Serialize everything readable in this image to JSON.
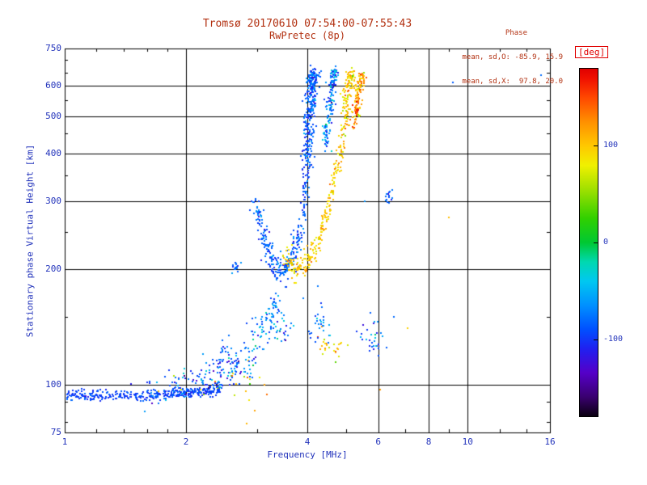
{
  "header": {
    "title": "Tromsø 20170610 07:54:00-07:55:43",
    "subtitle": "RwPretec (8p)",
    "phase_stats": {
      "label": "Phase",
      "o_line": "mean, sd,O: -85.9, 15.9",
      "x_line": "mean, sd,X:  97.8, 20.0"
    }
  },
  "colors": {
    "title_text": "#b23010",
    "axis_text": "#2233bb",
    "deg_label": "#e00000",
    "grid": "#000000",
    "background": "#ffffff"
  },
  "chart_data": {
    "type": "scatter",
    "title": "Tromsø 20170610 07:54:00-07:55:43",
    "subtitle": "RwPretec (8p)",
    "xlabel": "Frequency [MHz]",
    "ylabel": "Stationary phase Virtual Height [km]",
    "x_scale": "log",
    "y_scale": "log",
    "xlim": [
      1,
      16
    ],
    "ylim": [
      75,
      750
    ],
    "x_ticks": [
      1,
      2,
      4,
      6,
      8,
      10,
      16
    ],
    "y_ticks": [
      75,
      100,
      200,
      300,
      400,
      500,
      600,
      750
    ],
    "x_minor": [
      1.2,
      1.4,
      1.6,
      1.8,
      3,
      5,
      7,
      9,
      12,
      14
    ],
    "y_minor": [
      80,
      90,
      150,
      250,
      350,
      450,
      550,
      650,
      700
    ],
    "grid_x": [
      2,
      4,
      6,
      8,
      10
    ],
    "grid_y": [
      100,
      200,
      300,
      400,
      500,
      600
    ],
    "legend": "colorbar",
    "colorbar": {
      "label": "[deg]",
      "min": -180,
      "max": 180,
      "ticks": [
        100,
        0,
        -100
      ],
      "stops": [
        [
          -180,
          "#0a0010"
        ],
        [
          -160,
          "#3a0070"
        ],
        [
          -135,
          "#5500c8"
        ],
        [
          -110,
          "#2020f0"
        ],
        [
          -90,
          "#0050ff"
        ],
        [
          -65,
          "#0090ff"
        ],
        [
          -40,
          "#00c8f0"
        ],
        [
          -20,
          "#00d8b0"
        ],
        [
          0,
          "#00c832"
        ],
        [
          25,
          "#30d000"
        ],
        [
          55,
          "#a0e000"
        ],
        [
          80,
          "#f0f000"
        ],
        [
          100,
          "#ffc800"
        ],
        [
          125,
          "#ff9000"
        ],
        [
          150,
          "#ff4800"
        ],
        [
          170,
          "#f01000"
        ],
        [
          180,
          "#e00000"
        ]
      ]
    },
    "seed": 42,
    "traces": [
      {
        "name": "e-baseline",
        "path": [
          [
            1.0,
            93
          ],
          [
            1.2,
            94
          ],
          [
            1.45,
            93
          ],
          [
            1.7,
            94
          ],
          [
            1.95,
            95
          ],
          [
            2.2,
            96
          ],
          [
            2.45,
            97
          ]
        ],
        "n": 380,
        "jf": 0.008,
        "jh": 1.6,
        "phase_mean": -95,
        "phase_sd": 10
      },
      {
        "name": "e-baseline-rise",
        "path": [
          [
            1.5,
            96
          ],
          [
            1.8,
            99
          ],
          [
            2.1,
            102
          ],
          [
            2.35,
            105
          ],
          [
            2.6,
            108
          ],
          [
            2.85,
            110
          ]
        ],
        "n": 110,
        "jf": 0.03,
        "jh": 5,
        "phase_mean": -85,
        "phase_sd": 30
      },
      {
        "name": "e-sporadic-yellow",
        "path": [
          [
            1.7,
            96
          ],
          [
            2.1,
            100
          ],
          [
            2.5,
            104
          ],
          [
            2.9,
            100
          ],
          [
            3.3,
            95
          ]
        ],
        "n": 22,
        "jf": 0.05,
        "jh": 6,
        "phase_mean": 95,
        "phase_sd": 35
      },
      {
        "name": "cluster-2.5",
        "path": [
          [
            2.4,
            112
          ],
          [
            2.55,
            118
          ],
          [
            2.7,
            114
          ]
        ],
        "n": 45,
        "jf": 0.02,
        "jh": 7,
        "phase_mean": -78,
        "phase_sd": 25
      },
      {
        "name": "rising-scatter",
        "path": [
          [
            2.8,
            118
          ],
          [
            2.95,
            126
          ],
          [
            3.1,
            138
          ],
          [
            3.25,
            148
          ],
          [
            3.4,
            142
          ],
          [
            3.55,
            136
          ]
        ],
        "n": 95,
        "jf": 0.025,
        "jh": 9,
        "phase_mean": -72,
        "phase_sd": 28
      },
      {
        "name": "spur-165",
        "path": [
          [
            3.25,
            150
          ],
          [
            3.3,
            160
          ],
          [
            3.33,
            170
          ]
        ],
        "n": 22,
        "jf": 0.012,
        "jh": 5,
        "phase_mean": -70,
        "phase_sd": 20
      },
      {
        "name": "detached-195",
        "path": [
          [
            2.6,
            196
          ],
          [
            2.68,
            203
          ]
        ],
        "n": 16,
        "jf": 0.012,
        "jh": 4,
        "phase_mean": -85,
        "phase_sd": 14
      },
      {
        "name": "o-cusp",
        "path": [
          [
            2.95,
            302
          ],
          [
            3.02,
            278
          ],
          [
            3.1,
            252
          ],
          [
            3.18,
            228
          ],
          [
            3.28,
            206
          ],
          [
            3.38,
            197
          ],
          [
            3.5,
            198
          ],
          [
            3.62,
            206
          ],
          [
            3.72,
            220
          ],
          [
            3.82,
            244
          ],
          [
            3.9,
            278
          ],
          [
            3.95,
            315
          ],
          [
            3.99,
            355
          ]
        ],
        "n": 300,
        "jf": 0.012,
        "jh": 8,
        "phase_mean": -86,
        "phase_sd": 16
      },
      {
        "name": "o-vertical",
        "path": [
          [
            4.0,
            360
          ],
          [
            4.02,
            420
          ],
          [
            4.05,
            480
          ],
          [
            4.08,
            535
          ],
          [
            4.1,
            585
          ],
          [
            4.13,
            625
          ],
          [
            4.15,
            645
          ]
        ],
        "n": 300,
        "jf": 0.016,
        "jh": 14,
        "phase_mean": -86,
        "phase_sd": 16
      },
      {
        "name": "o-vertical-2",
        "path": [
          [
            4.45,
            410
          ],
          [
            4.5,
            470
          ],
          [
            4.55,
            530
          ],
          [
            4.6,
            585
          ],
          [
            4.65,
            630
          ],
          [
            4.68,
            648
          ]
        ],
        "n": 150,
        "jf": 0.013,
        "jh": 12,
        "phase_mean": -70,
        "phase_sd": 28
      },
      {
        "name": "x-cusp",
        "path": [
          [
            3.52,
            216
          ],
          [
            3.62,
            205
          ],
          [
            3.75,
            200
          ],
          [
            3.9,
            203
          ],
          [
            4.05,
            212
          ],
          [
            4.2,
            228
          ],
          [
            4.35,
            252
          ],
          [
            4.5,
            285
          ],
          [
            4.62,
            325
          ],
          [
            4.75,
            372
          ],
          [
            4.87,
            418
          ]
        ],
        "n": 240,
        "jf": 0.012,
        "jh": 7,
        "phase_mean": 96,
        "phase_sd": 18
      },
      {
        "name": "x-vertical",
        "path": [
          [
            4.9,
            430
          ],
          [
            4.95,
            485
          ],
          [
            5.0,
            540
          ],
          [
            5.05,
            590
          ],
          [
            5.1,
            628
          ],
          [
            5.15,
            648
          ]
        ],
        "n": 130,
        "jf": 0.012,
        "jh": 12,
        "phase_mean": 98,
        "phase_sd": 20
      },
      {
        "name": "x-vertical-outer",
        "path": [
          [
            5.25,
            470
          ],
          [
            5.3,
            515
          ],
          [
            5.35,
            558
          ],
          [
            5.42,
            600
          ],
          [
            5.48,
            638
          ]
        ],
        "n": 110,
        "jf": 0.012,
        "jh": 12,
        "phase_mean": 112,
        "phase_sd": 28
      },
      {
        "name": "red-blob",
        "path": [
          [
            5.28,
            505
          ],
          [
            5.32,
            520
          ]
        ],
        "n": 12,
        "jf": 0.008,
        "jh": 6,
        "phase_mean": 160,
        "phase_sd": 12
      },
      {
        "name": "scatter-4.5-orange",
        "path": [
          [
            4.35,
            128
          ],
          [
            4.6,
            126
          ],
          [
            4.85,
            124
          ]
        ],
        "n": 26,
        "jf": 0.02,
        "jh": 5,
        "phase_mean": 100,
        "phase_sd": 30
      },
      {
        "name": "scatter-4.3-blue",
        "path": [
          [
            4.1,
            140
          ],
          [
            4.3,
            146
          ],
          [
            4.5,
            138
          ]
        ],
        "n": 28,
        "jf": 0.02,
        "jh": 7,
        "phase_mean": -76,
        "phase_sd": 22
      },
      {
        "name": "scatter-5.8",
        "path": [
          [
            5.5,
            128
          ],
          [
            5.75,
            135
          ],
          [
            6.05,
            130
          ]
        ],
        "n": 30,
        "jf": 0.02,
        "jh": 7,
        "phase_mean": -70,
        "phase_sd": 30
      },
      {
        "name": "cluster-6.3-high",
        "path": [
          [
            6.25,
            300
          ],
          [
            6.35,
            315
          ],
          [
            6.45,
            308
          ]
        ],
        "n": 14,
        "jf": 0.012,
        "jh": 8,
        "phase_mean": -80,
        "phase_sd": 18
      }
    ],
    "extra_points": [
      [
        9.2,
        612,
        -85
      ],
      [
        15.2,
        640,
        -80
      ],
      [
        9.0,
        272,
        105
      ],
      [
        6.05,
        97,
        120
      ],
      [
        2.83,
        79,
        108
      ],
      [
        6.55,
        150,
        -80
      ],
      [
        7.1,
        140,
        95
      ],
      [
        3.9,
        168,
        -72
      ],
      [
        4.25,
        180,
        -75
      ],
      [
        5.55,
        300,
        -65
      ],
      [
        2.2,
        120,
        -60
      ],
      [
        6.3,
        125,
        -85
      ]
    ]
  }
}
